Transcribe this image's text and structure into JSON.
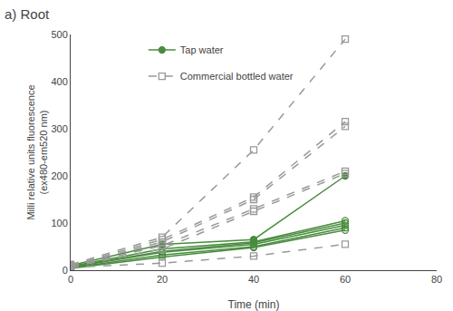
{
  "chart_data": {
    "type": "line",
    "title": "a) Root",
    "x_label": "Time (min)",
    "y_label": "Milli relative units fluorescence\n(ex480-em520 nm)",
    "xlim": [
      0,
      80
    ],
    "ylim": [
      0,
      500
    ],
    "xticks": [
      0,
      20,
      40,
      60,
      80
    ],
    "yticks": [
      0,
      100,
      200,
      300,
      400,
      500
    ],
    "grid": false,
    "legend": "upper left",
    "x": [
      0,
      20,
      40,
      60
    ],
    "series": [
      {
        "name": "Tap water",
        "color": "#4a8c3f",
        "line_style": "solid",
        "marker": "circle",
        "values": [
          10,
          55,
          65,
          200
        ]
      },
      {
        "name": "Tap water",
        "color": "#4a8c3f",
        "line_style": "solid",
        "marker": "circle-open",
        "values": [
          8,
          45,
          60,
          105
        ]
      },
      {
        "name": "Tap water",
        "color": "#4a8c3f",
        "line_style": "solid",
        "marker": "circle-open",
        "values": [
          7,
          40,
          58,
          100
        ]
      },
      {
        "name": "Tap water",
        "color": "#4a8c3f",
        "line_style": "solid",
        "marker": "circle-open",
        "values": [
          6,
          38,
          55,
          95
        ]
      },
      {
        "name": "Tap water",
        "color": "#4a8c3f",
        "line_style": "solid",
        "marker": "circle-open",
        "values": [
          5,
          32,
          50,
          90
        ]
      },
      {
        "name": "Tap water",
        "color": "#4a8c3f",
        "line_style": "solid",
        "marker": "circle-open",
        "values": [
          4,
          28,
          48,
          85
        ]
      },
      {
        "name": "Commercial bottled water",
        "color": "#999999",
        "line_style": "dash",
        "marker": "square-open",
        "values": [
          12,
          70,
          255,
          490
        ]
      },
      {
        "name": "Commercial bottled water",
        "color": "#999999",
        "line_style": "dash",
        "marker": "square-open",
        "values": [
          10,
          65,
          155,
          315
        ]
      },
      {
        "name": "Commercial bottled water",
        "color": "#999999",
        "line_style": "dash",
        "marker": "square-open",
        "values": [
          9,
          60,
          150,
          305
        ]
      },
      {
        "name": "Commercial bottled water",
        "color": "#999999",
        "line_style": "dash",
        "marker": "square-open",
        "values": [
          8,
          52,
          130,
          210
        ]
      },
      {
        "name": "Commercial bottled water",
        "color": "#999999",
        "line_style": "dash",
        "marker": "square-open",
        "values": [
          7,
          45,
          125,
          205
        ]
      },
      {
        "name": "Commercial bottled water",
        "color": "#999999",
        "line_style": "dash",
        "marker": "square-open",
        "values": [
          6,
          15,
          30,
          55
        ]
      }
    ]
  }
}
